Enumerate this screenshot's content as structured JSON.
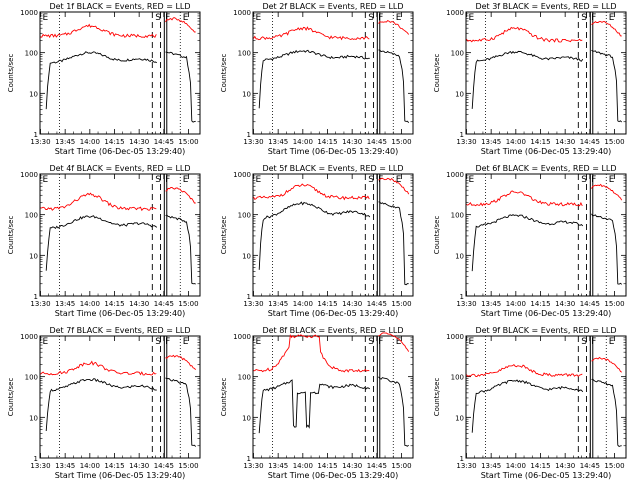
{
  "figure": {
    "common": {
      "ylabel": "Counts/sec",
      "xlabel": "Start Time (06-Dec-05 13:29:40)",
      "x_tick_labels": [
        "13:30",
        "13:45",
        "14:00",
        "14:15",
        "14:30",
        "14:45",
        "15:00"
      ],
      "y_tick_labels": [
        "1",
        "10",
        "100",
        "1000"
      ],
      "markers": {
        "E": "E",
        "S": "S",
        "F": "F"
      }
    }
  },
  "chart_data": [
    {
      "type": "line",
      "title": "Det 1f BLACK = Events, RED = LLD",
      "ylabel": "Counts/sec",
      "xlabel": "Start Time (06-Dec-05 13:29:40)",
      "x_unit": "minutes since 13:30",
      "xlim": [
        -0.3,
        97
      ],
      "y_scale": "log",
      "ylim": [
        1,
        1000
      ],
      "series": [
        {
          "name": "Events",
          "color": "#000000",
          "base_level": 55,
          "peak": 100
        },
        {
          "name": "LLD",
          "color": "#ff0000",
          "base_level": 260,
          "peak": 480
        }
      ]
    },
    {
      "type": "line",
      "title": "Det 2f BLACK = Events, RED = LLD",
      "ylabel": "Counts/sec",
      "xlabel": "Start Time (06-Dec-05 13:29:40)",
      "x_unit": "minutes since 13:30",
      "xlim": [
        -0.3,
        97
      ],
      "y_scale": "log",
      "ylim": [
        1,
        1000
      ],
      "series": [
        {
          "name": "Events",
          "color": "#000000",
          "base_level": 65,
          "peak": 110
        },
        {
          "name": "LLD",
          "color": "#ff0000",
          "base_level": 230,
          "peak": 420
        }
      ]
    },
    {
      "type": "line",
      "title": "Det 3f BLACK = Events, RED = LLD",
      "ylabel": "Counts/sec",
      "xlabel": "Start Time (06-Dec-05 13:29:40)",
      "x_unit": "minutes since 13:30",
      "xlim": [
        -0.3,
        97
      ],
      "y_scale": "log",
      "ylim": [
        1,
        1000
      ],
      "series": [
        {
          "name": "Events",
          "color": "#000000",
          "base_level": 60,
          "peak": 105
        },
        {
          "name": "LLD",
          "color": "#ff0000",
          "base_level": 200,
          "peak": 420
        }
      ]
    },
    {
      "type": "line",
      "title": "Det 4f BLACK = Events, RED = LLD",
      "ylabel": "Counts/sec",
      "xlabel": "Start Time (06-Dec-05 13:29:40)",
      "x_unit": "minutes since 13:30",
      "xlim": [
        -0.3,
        97
      ],
      "y_scale": "log",
      "ylim": [
        1,
        1000
      ],
      "series": [
        {
          "name": "Events",
          "color": "#000000",
          "base_level": 45,
          "peak": 90
        },
        {
          "name": "LLD",
          "color": "#ff0000",
          "base_level": 140,
          "peak": 330
        }
      ]
    },
    {
      "type": "line",
      "title": "Det 5f BLACK = Events, RED = LLD",
      "ylabel": "Counts/sec",
      "xlabel": "Start Time (06-Dec-05 13:29:40)",
      "x_unit": "minutes since 13:30",
      "xlim": [
        -0.3,
        97
      ],
      "y_scale": "log",
      "ylim": [
        1,
        1000
      ],
      "series": [
        {
          "name": "Events",
          "color": "#000000",
          "base_level": 80,
          "peak": 190
        },
        {
          "name": "LLD",
          "color": "#ff0000",
          "base_level": 260,
          "peak": 560
        }
      ]
    },
    {
      "type": "line",
      "title": "Det 6f BLACK = Events, RED = LLD",
      "ylabel": "Counts/sec",
      "xlabel": "Start Time (06-Dec-05 13:29:40)",
      "x_unit": "minutes since 13:30",
      "xlim": [
        -0.3,
        97
      ],
      "y_scale": "log",
      "ylim": [
        1,
        1000
      ],
      "series": [
        {
          "name": "Events",
          "color": "#000000",
          "base_level": 50,
          "peak": 95
        },
        {
          "name": "LLD",
          "color": "#ff0000",
          "base_level": 180,
          "peak": 380
        }
      ]
    },
    {
      "type": "line",
      "title": "Det 7f BLACK = Events, RED = LLD",
      "ylabel": "Counts/sec",
      "xlabel": "Start Time (06-Dec-05 13:29:40)",
      "x_unit": "minutes since 13:30",
      "xlim": [
        -0.3,
        97
      ],
      "y_scale": "log",
      "ylim": [
        1,
        1000
      ],
      "series": [
        {
          "name": "Events",
          "color": "#000000",
          "base_level": 45,
          "peak": 85
        },
        {
          "name": "LLD",
          "color": "#ff0000",
          "base_level": 120,
          "peak": 230
        }
      ]
    },
    {
      "type": "line",
      "title": "Det 8f BLACK = Events, RED = LLD",
      "ylabel": "Counts/sec",
      "xlabel": "Start Time (06-Dec-05 13:29:40)",
      "x_unit": "minutes since 13:30",
      "xlim": [
        -0.3,
        97
      ],
      "y_scale": "log",
      "ylim": [
        1,
        1000
      ],
      "series": [
        {
          "name": "Events",
          "color": "#000000",
          "base_level": 45,
          "peak": 90
        },
        {
          "name": "LLD",
          "color": "#ff0000",
          "base_level": 140,
          "peak": 1000
        }
      ]
    },
    {
      "type": "line",
      "title": "Det 9f BLACK = Events, RED = LLD",
      "ylabel": "Counts/sec",
      "xlabel": "Start Time (06-Dec-05 13:29:40)",
      "x_unit": "minutes since 13:30",
      "xlim": [
        -0.3,
        97
      ],
      "y_scale": "log",
      "ylim": [
        1,
        1000
      ],
      "series": [
        {
          "name": "Events",
          "color": "#000000",
          "base_level": 40,
          "peak": 80
        },
        {
          "name": "LLD",
          "color": "#ff0000",
          "base_level": 110,
          "peak": 200
        }
      ]
    }
  ]
}
